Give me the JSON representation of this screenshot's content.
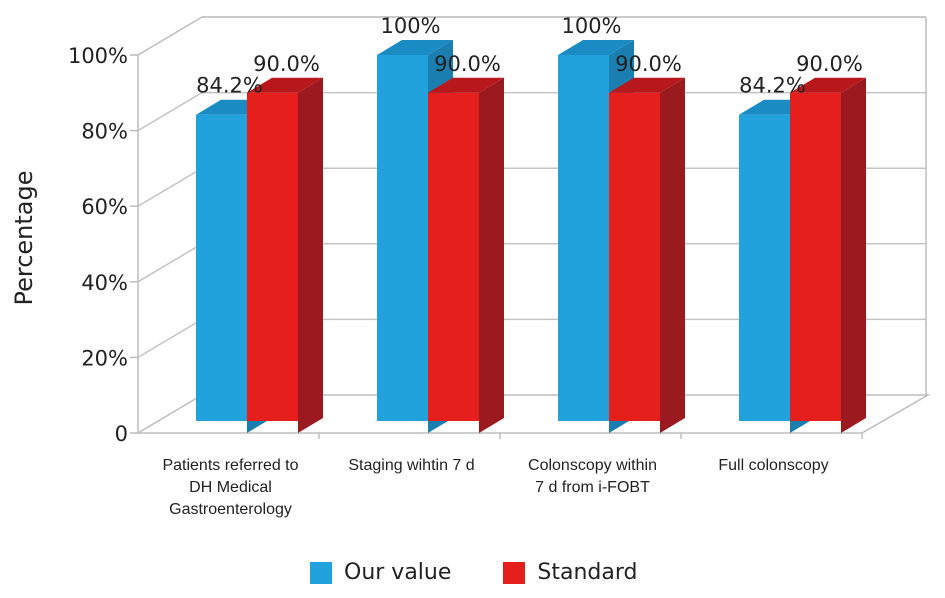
{
  "chart_data": {
    "type": "bar",
    "ylabel": "Percentage",
    "y_ticks": [
      "0",
      "20%",
      "40%",
      "60%",
      "80%",
      "100%"
    ],
    "ylim": [
      0,
      100
    ],
    "categories": [
      [
        "Patients referred to",
        "DH Medical",
        "Gastroenterology"
      ],
      [
        "Staging wihtin 7 d"
      ],
      [
        "Colonscopy within",
        "7 d from i-FOBT"
      ],
      [
        "Full colonscopy"
      ]
    ],
    "series": [
      {
        "name": "Our value",
        "color": "#22a2dd",
        "side_color": "#1a7fb0",
        "top_color": "#1b8bc3",
        "values": [
          84.2,
          100,
          100,
          84.2
        ],
        "labels": [
          "84.2%",
          "100%",
          "100%",
          "84.2%"
        ]
      },
      {
        "name": "Standard",
        "color": "#e41f1c",
        "side_color": "#9a1a1f",
        "top_color": "#b8171c",
        "values": [
          90.0,
          90.0,
          90.0,
          90.0
        ],
        "labels": [
          "90.0%",
          "90.0%",
          "90.0%",
          "90.0%"
        ]
      }
    ],
    "grid": true,
    "legend_position": "bottom"
  }
}
